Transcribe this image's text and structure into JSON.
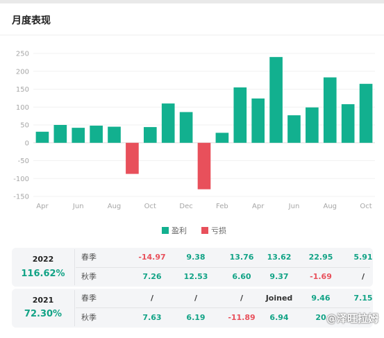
{
  "header": {
    "title": "月度表现"
  },
  "chart_data": {
    "type": "bar",
    "ylim": [
      -150,
      250
    ],
    "yticks": [
      250,
      200,
      150,
      100,
      50,
      0,
      -50,
      -100,
      -150
    ],
    "xtick_labels": [
      "Apr",
      "Jun",
      "Aug",
      "Oct",
      "Dec",
      "Feb",
      "Apr",
      "Jun",
      "Aug",
      "Oct"
    ],
    "values": [
      31,
      50,
      42,
      48,
      45,
      -87,
      44,
      110,
      86,
      -130,
      28,
      155,
      124,
      240,
      77,
      99,
      183,
      108,
      165
    ],
    "legend": [
      {
        "name": "盈利",
        "color": "#12b08f"
      },
      {
        "name": "亏损",
        "color": "#e8505b"
      }
    ],
    "legend_position": "bottom",
    "grid": true
  },
  "performance": [
    {
      "year": "2022",
      "total": "116.62%",
      "rows": [
        {
          "season": "春季",
          "values": [
            "-14.97",
            "9.38",
            "13.76",
            "13.62",
            "22.95",
            "5.91"
          ],
          "signs": [
            "neg",
            "pos",
            "pos",
            "pos",
            "pos",
            "pos"
          ]
        },
        {
          "season": "秋季",
          "values": [
            "7.26",
            "12.53",
            "6.60",
            "9.37",
            "-1.69",
            "/"
          ],
          "signs": [
            "pos",
            "pos",
            "pos",
            "pos",
            "neg",
            "neu"
          ]
        }
      ]
    },
    {
      "year": "2021",
      "total": "72.30%",
      "rows": [
        {
          "season": "春季",
          "values": [
            "/",
            "/",
            "/",
            "Joined",
            "9.46",
            "7.15"
          ],
          "signs": [
            "neu",
            "neu",
            "neu",
            "neu",
            "pos",
            "pos"
          ]
        },
        {
          "season": "秋季",
          "values": [
            "7.63",
            "6.19",
            "-11.89",
            "6.94",
            "20",
            ""
          ],
          "signs": [
            "pos",
            "pos",
            "neg",
            "pos",
            "pos",
            "pos"
          ]
        }
      ]
    }
  ],
  "watermark": "@泽旺拉姆"
}
